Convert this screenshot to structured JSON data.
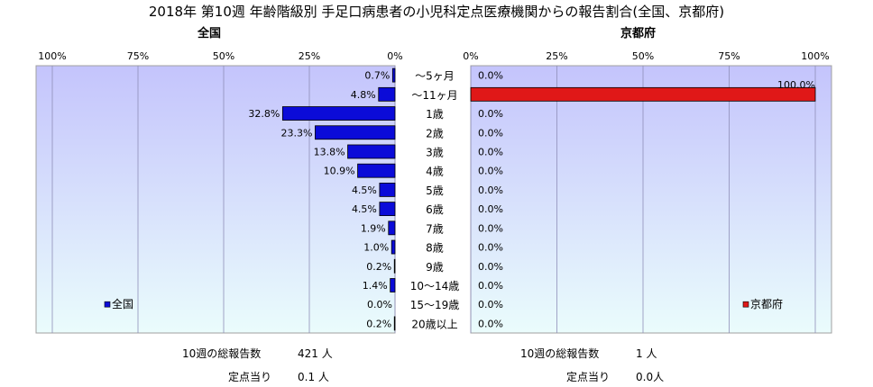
{
  "title": "2018年 第10週 年齢階級別 手足口病患者の小児科定点医療機関からの報告割合(全国、京都府)",
  "colors": {
    "national_bar": "#0b0bd8",
    "kyoto_bar": "#e01818",
    "plot_bg_top": "#c4c4fc",
    "plot_bg_bottom": "#eafcfc"
  },
  "chart_data": [
    {
      "type": "bar",
      "orientation": "horizontal",
      "title": "全国",
      "categories": [
        "～5ヶ月",
        "～11ヶ月",
        "1歳",
        "2歳",
        "3歳",
        "4歳",
        "5歳",
        "6歳",
        "7歳",
        "8歳",
        "9歳",
        "10～14歳",
        "15～19歳",
        "20歳以上"
      ],
      "series": [
        {
          "name": "全国",
          "values": [
            0.7,
            4.8,
            32.8,
            23.3,
            13.8,
            10.9,
            4.5,
            4.5,
            1.9,
            1.0,
            0.2,
            1.4,
            0.0,
            0.2
          ]
        }
      ],
      "value_labels": [
        "0.7%",
        "4.8%",
        "32.8%",
        "23.3%",
        "13.8%",
        "10.9%",
        "4.5%",
        "4.5%",
        "1.9%",
        "1.0%",
        "0.2%",
        "1.4%",
        "0.0%",
        "0.2%"
      ],
      "xlim": [
        0,
        100
      ],
      "x_direction": "reversed",
      "ticks": [
        "100%",
        "75%",
        "50%",
        "25%",
        "0%"
      ],
      "legend": "bottom-left",
      "grid": true
    },
    {
      "type": "bar",
      "orientation": "horizontal",
      "title": "京都府",
      "categories": [
        "～5ヶ月",
        "～11ヶ月",
        "1歳",
        "2歳",
        "3歳",
        "4歳",
        "5歳",
        "6歳",
        "7歳",
        "8歳",
        "9歳",
        "10～14歳",
        "15～19歳",
        "20歳以上"
      ],
      "series": [
        {
          "name": "京都府",
          "values": [
            0.0,
            100.0,
            0.0,
            0.0,
            0.0,
            0.0,
            0.0,
            0.0,
            0.0,
            0.0,
            0.0,
            0.0,
            0.0,
            0.0
          ]
        }
      ],
      "value_labels": [
        "0.0%",
        "100.0%",
        "0.0%",
        "0.0%",
        "0.0%",
        "0.0%",
        "0.0%",
        "0.0%",
        "0.0%",
        "0.0%",
        "0.0%",
        "0.0%",
        "0.0%",
        "0.0%"
      ],
      "xlim": [
        0,
        100
      ],
      "x_direction": "normal",
      "ticks": [
        "0%",
        "25%",
        "50%",
        "75%",
        "100%"
      ],
      "legend": "bottom-right",
      "grid": true
    }
  ],
  "stats": {
    "national": {
      "total_label": "10週の総報告数",
      "total_value": "421 人",
      "per_site_label": "定点当り",
      "per_site_value": "0.1 人"
    },
    "kyoto": {
      "total_label": "10週の総報告数",
      "total_value": "1 人",
      "per_site_label": "定点当り",
      "per_site_value": "0.0人"
    }
  }
}
